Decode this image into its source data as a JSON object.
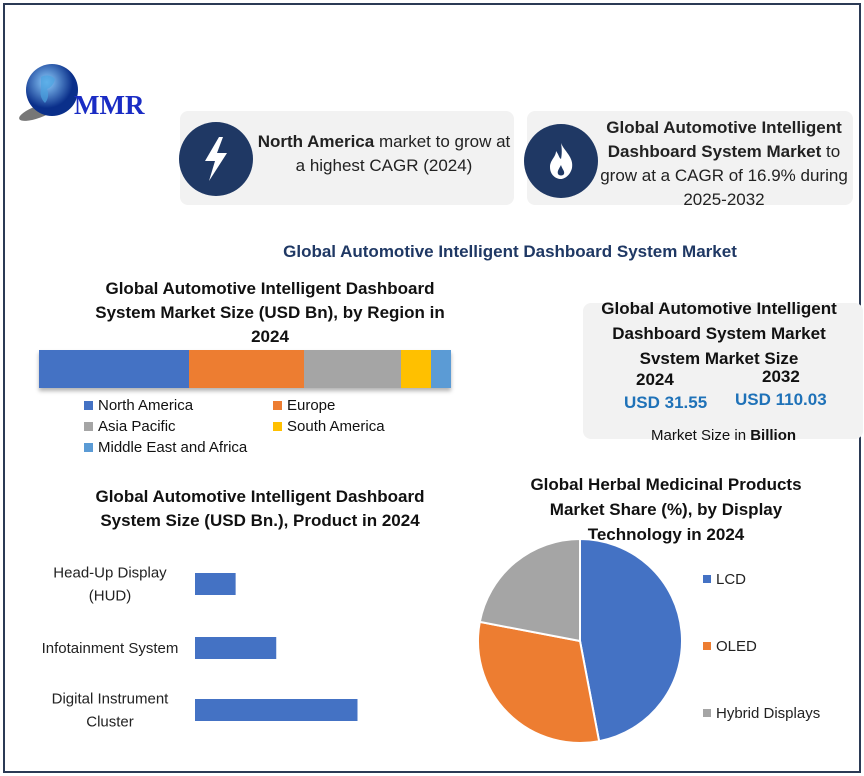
{
  "logo": {
    "text": "MMR"
  },
  "callouts": [
    {
      "icon": "lightning-icon",
      "bold": "North America",
      "rest": " market to grow at a highest CAGR (2024)"
    },
    {
      "icon": "flame-icon",
      "bold": "Global Automotive Intelligent Dashboard System Market",
      "rest": " to grow at a CAGR of 16.9% during 2025-2032"
    }
  ],
  "main_title": "Global Automotive Intelligent Dashboard System Market",
  "market_size": {
    "title": "Global Automotive Intelligent Dashboard System Market Svstem Market Size",
    "year1": "2024",
    "value1": "USD 31.55",
    "year2": "2032",
    "value2": "USD 110.03",
    "note": "Market Size in ",
    "note_bold": "Billion"
  },
  "colors": {
    "blue": "#4472c4",
    "orange": "#ed7d31",
    "gray": "#a5a5a5",
    "yellow": "#ffc000",
    "lightblue": "#5b9bd5",
    "navy": "#1f3864"
  },
  "chart_data": [
    {
      "type": "bar",
      "orientation": "horizontal-stacked",
      "title": "Global Automotive Intelligent Dashboard System Market Size (USD Bn), by Region in 2024",
      "series": [
        {
          "name": "North America",
          "value": 36.4,
          "color": "#4472c4"
        },
        {
          "name": "Europe",
          "value": 27.9,
          "color": "#ed7d31"
        },
        {
          "name": "Asia Pacific",
          "value": 23.5,
          "color": "#a5a5a5"
        },
        {
          "name": "South America",
          "value": 7.3,
          "color": "#ffc000"
        },
        {
          "name": "Middle East and Africa",
          "value": 4.9,
          "color": "#5b9bd5"
        }
      ],
      "legend": "bottom"
    },
    {
      "type": "bar",
      "orientation": "horizontal",
      "title": "Global Automotive Intelligent Dashboard System Size (USD Bn.), Product in 2024",
      "categories": [
        "Head-Up Display (HUD)",
        "Infotainment System",
        "Digital Instrument Cluster"
      ],
      "values": [
        2.5,
        5,
        10
      ],
      "xlim": [
        0,
        12
      ]
    },
    {
      "type": "pie",
      "title": "Global Herbal Medicinal Products Market Share (%), by Display Technology in 2024",
      "categories": [
        "LCD",
        "OLED",
        "Hybrid Displays"
      ],
      "values": [
        47,
        31,
        22
      ],
      "colors": [
        "#4472c4",
        "#ed7d31",
        "#a5a5a5"
      ],
      "legend": "right"
    }
  ]
}
